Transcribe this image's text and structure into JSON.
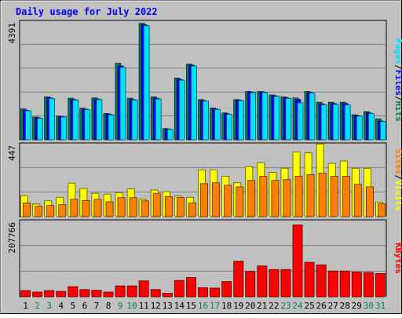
{
  "chart_data": [
    {
      "type": "bar",
      "title": "Daily usage for July 2022",
      "categories": [
        "1",
        "2",
        "3",
        "4",
        "5",
        "6",
        "7",
        "8",
        "9",
        "10",
        "11",
        "12",
        "13",
        "14",
        "15",
        "16",
        "17",
        "18",
        "19",
        "20",
        "21",
        "22",
        "23",
        "24",
        "25",
        "26",
        "27",
        "28",
        "29",
        "30",
        "31"
      ],
      "weekend_days": [
        "2",
        "3",
        "9",
        "10",
        "16",
        "17",
        "23",
        "24",
        "30",
        "31"
      ],
      "ymax_label": "4391",
      "ylim": [
        0,
        4391
      ],
      "side_label": [
        "Pages",
        "/",
        "Files",
        "/",
        "Hits"
      ],
      "series": [
        {
          "name": "Hits",
          "color": "#00805c",
          "values": [
            1150,
            850,
            1600,
            880,
            1550,
            1180,
            1560,
            980,
            2850,
            1550,
            4340,
            1600,
            420,
            2300,
            2820,
            1500,
            1180,
            1000,
            1500,
            1800,
            1800,
            1670,
            1600,
            1560,
            1800,
            1400,
            1400,
            1400,
            930,
            1050,
            780
          ]
        },
        {
          "name": "Files",
          "color": "#0000ff",
          "values": [
            1100,
            820,
            1560,
            860,
            1500,
            1140,
            1520,
            950,
            2750,
            1500,
            4290,
            1550,
            400,
            2250,
            2780,
            1460,
            1150,
            970,
            1480,
            1780,
            1780,
            1640,
            1560,
            1500,
            1760,
            1340,
            1350,
            1350,
            900,
            1000,
            700
          ]
        },
        {
          "name": "Pages",
          "color": "#00e0ff",
          "values": [
            1080,
            800,
            1540,
            850,
            1480,
            1120,
            1500,
            930,
            2700,
            1480,
            4250,
            1520,
            390,
            2220,
            2750,
            1440,
            1130,
            950,
            1460,
            1760,
            1760,
            1620,
            1540,
            1380,
            1740,
            1300,
            1320,
            1300,
            880,
            980,
            680
          ]
        }
      ]
    },
    {
      "type": "bar",
      "ymax_label": "447",
      "ylim": [
        0,
        447
      ],
      "side_label": [
        "Sites",
        "/",
        "Visits"
      ],
      "series": [
        {
          "name": "Visits",
          "color": "#ffff00",
          "values": [
            130,
            78,
            98,
            120,
            208,
            175,
            145,
            140,
            148,
            172,
            108,
            165,
            155,
            128,
            120,
            290,
            290,
            250,
            210,
            310,
            335,
            275,
            300,
            400,
            395,
            450,
            330,
            345,
            300,
            300,
            90
          ]
        },
        {
          "name": "Sites",
          "color": "#ff8000",
          "values": [
            85,
            65,
            70,
            75,
            108,
            100,
            108,
            92,
            118,
            118,
            98,
            145,
            125,
            120,
            85,
            205,
            210,
            195,
            185,
            225,
            250,
            225,
            230,
            250,
            260,
            270,
            250,
            250,
            200,
            185,
            80
          ]
        }
      ]
    },
    {
      "type": "bar",
      "ymax_label": "207766",
      "ylim": [
        0,
        207766
      ],
      "side_label": [
        "KBytes"
      ],
      "series": [
        {
          "name": "KBytes",
          "color": "#ff0000",
          "values": [
            17000,
            13000,
            17000,
            15000,
            28000,
            20000,
            18000,
            13000,
            30000,
            30000,
            44000,
            20000,
            10000,
            45000,
            53000,
            25000,
            24000,
            42000,
            98000,
            70000,
            85000,
            75000,
            75000,
            198000,
            95000,
            88000,
            71000,
            71000,
            68000,
            67000,
            64000
          ]
        }
      ]
    }
  ]
}
